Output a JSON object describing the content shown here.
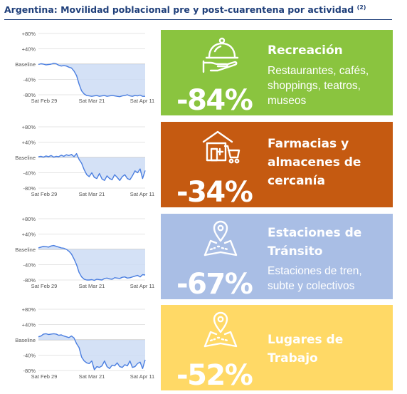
{
  "title": "Argentina: Movilidad poblacional pre y post-cuarentena por actividad",
  "title_note": "(2)",
  "chart_data": [
    {
      "type": "area",
      "y_ticks": [
        "+80%",
        "+40%",
        "Baseline",
        "-40%",
        "-80%"
      ],
      "x_ticks": [
        "Sat Feb 29",
        "Sat Mar 21",
        "Sat Apr 11"
      ],
      "ylim": [
        -80,
        80
      ],
      "values": [
        -1,
        1,
        0,
        -2,
        -1,
        0,
        2,
        1,
        -3,
        -5,
        -4,
        -5,
        -8,
        -10,
        -18,
        -30,
        -52,
        -70,
        -78,
        -82,
        -83,
        -84,
        -83,
        -82,
        -84,
        -83,
        -82,
        -84,
        -83,
        -82,
        -83,
        -84,
        -85,
        -83,
        -82,
        -80,
        -83,
        -84,
        -82,
        -83,
        -81,
        -84,
        -84
      ],
      "color": "#4a7ee0",
      "fill": "#cddcf5"
    },
    {
      "type": "area",
      "y_ticks": [
        "+80%",
        "+40%",
        "Baseline",
        "-40%",
        "-80%"
      ],
      "x_ticks": [
        "Sat Feb 29",
        "Sat Mar 21",
        "Sat Apr 11"
      ],
      "ylim": [
        -80,
        80
      ],
      "values": [
        2,
        3,
        1,
        4,
        2,
        5,
        1,
        3,
        2,
        6,
        3,
        7,
        5,
        8,
        2,
        10,
        -5,
        -15,
        -32,
        -45,
        -50,
        -40,
        -52,
        -55,
        -42,
        -56,
        -60,
        -48,
        -55,
        -58,
        -45,
        -52,
        -60,
        -50,
        -45,
        -55,
        -58,
        -48,
        -35,
        -40,
        -30,
        -55,
        -34
      ],
      "color": "#4a7ee0",
      "fill": "#cddcf5"
    },
    {
      "type": "area",
      "y_ticks": [
        "+80%",
        "+40%",
        "Baseline",
        "-40%",
        "-80%"
      ],
      "x_ticks": [
        "Sat Feb 29",
        "Sat Mar 21",
        "Sat Apr 11"
      ],
      "ylim": [
        -80,
        80
      ],
      "values": [
        4,
        6,
        8,
        7,
        6,
        9,
        10,
        8,
        6,
        4,
        3,
        0,
        -5,
        -12,
        -25,
        -40,
        -60,
        -72,
        -78,
        -80,
        -80,
        -79,
        -81,
        -78,
        -79,
        -80,
        -76,
        -75,
        -77,
        -78,
        -74,
        -75,
        -76,
        -73,
        -72,
        -75,
        -74,
        -72,
        -70,
        -68,
        -72,
        -66,
        -67
      ],
      "color": "#4a7ee0",
      "fill": "#cddcf5"
    },
    {
      "type": "area",
      "y_ticks": [
        "+80%",
        "+40%",
        "Baseline",
        "-40%",
        "-80%"
      ],
      "x_ticks": [
        "Sat Feb 29",
        "Sat Mar 21",
        "Sat Apr 11"
      ],
      "ylim": [
        -80,
        80
      ],
      "values": [
        8,
        10,
        15,
        16,
        14,
        15,
        16,
        15,
        12,
        13,
        10,
        8,
        6,
        10,
        5,
        -10,
        -20,
        -45,
        -55,
        -60,
        -62,
        -55,
        -78,
        -70,
        -72,
        -68,
        -55,
        -70,
        -75,
        -66,
        -68,
        -60,
        -70,
        -72,
        -65,
        -68,
        -55,
        -72,
        -70,
        -62,
        -58,
        -75,
        -52
      ],
      "color": "#4a7ee0",
      "fill": "#cddcf5"
    }
  ],
  "cards": [
    {
      "percent": "-84%",
      "name_lines": [
        "Recreación"
      ],
      "desc_lines": [
        "Restaurantes, cafés,",
        "shoppings, teatros,",
        "museos"
      ],
      "color": "#8ac43f",
      "icon": "cloche-serving-icon"
    },
    {
      "percent": "-34%",
      "name_lines": [
        "Farmacias y",
        "almacenes de",
        "cercanía"
      ],
      "desc_lines": [],
      "color": "#c55a11",
      "icon": "store-cart-icon"
    },
    {
      "percent": "-67%",
      "name_lines": [
        "Estaciones de",
        "Tránsito"
      ],
      "desc_lines": [
        "Estaciones de tren,",
        "subte y colectivos"
      ],
      "color": "#a9bee5",
      "icon": "map-pin-icon"
    },
    {
      "percent": "-52%",
      "name_lines": [
        "Lugares de",
        "Trabajo"
      ],
      "desc_lines": [],
      "color": "#ffd966",
      "icon": "map-pin-icon"
    }
  ]
}
